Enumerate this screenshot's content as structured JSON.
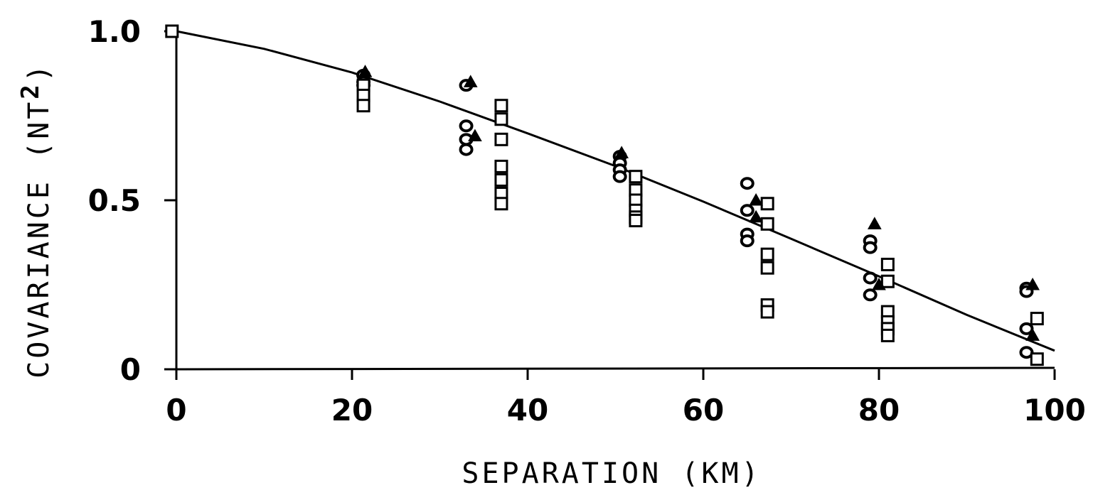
{
  "chart_data": {
    "type": "scatter",
    "title": "",
    "xlabel": "SEPARATION (KM)",
    "ylabel_text": "COVARIANCE (NT",
    "ylabel_superscript": "2",
    "ylabel_close": ")",
    "xlim": [
      0,
      100
    ],
    "ylim": [
      0,
      1.0
    ],
    "x_ticks": [
      0,
      20,
      40,
      60,
      80,
      100
    ],
    "x_tick_labels": [
      "0",
      "20",
      "40",
      "60",
      "80",
      "100"
    ],
    "y_ticks": [
      0,
      0.5,
      1.0
    ],
    "y_tick_labels": [
      "0",
      "0.5",
      "1.0"
    ],
    "grid": false,
    "series": [
      {
        "marker": "circle",
        "x": [
          21.3,
          21.3,
          21.3,
          33,
          33,
          33,
          33,
          50.5,
          50.5,
          50.5,
          50.5,
          65,
          65,
          65,
          65,
          79,
          79,
          79,
          79,
          96.8,
          96.8,
          96.8,
          96.8
        ],
        "y": [
          0.87,
          0.85,
          0.84,
          0.84,
          0.72,
          0.68,
          0.65,
          0.63,
          0.61,
          0.59,
          0.57,
          0.55,
          0.47,
          0.4,
          0.38,
          0.38,
          0.36,
          0.27,
          0.22,
          0.24,
          0.23,
          0.12,
          0.05
        ]
      },
      {
        "marker": "square",
        "x": [
          -0.5,
          21.3,
          21.3,
          21.3,
          37,
          37,
          37,
          37,
          37,
          37,
          37,
          52.3,
          52.3,
          52.3,
          52.3,
          52.3,
          52.3,
          67.3,
          67.3,
          67.3,
          67.3,
          67.3,
          67.3,
          81,
          81,
          81,
          81,
          81,
          81,
          98,
          98
        ],
        "y": [
          1.0,
          0.84,
          0.81,
          0.78,
          0.78,
          0.74,
          0.68,
          0.6,
          0.56,
          0.52,
          0.49,
          0.57,
          0.53,
          0.5,
          0.47,
          0.45,
          0.44,
          0.49,
          0.43,
          0.34,
          0.3,
          0.19,
          0.17,
          0.31,
          0.26,
          0.17,
          0.14,
          0.12,
          0.1,
          0.15,
          0.03
        ]
      },
      {
        "marker": "triangle",
        "x": [
          21.5,
          33.5,
          34,
          50.7,
          66,
          66,
          79.5,
          80,
          97.5,
          97.5
        ],
        "y": [
          0.88,
          0.85,
          0.69,
          0.64,
          0.5,
          0.45,
          0.43,
          0.25,
          0.25,
          0.1
        ]
      }
    ],
    "fit_curve": {
      "x": [
        0,
        10,
        20,
        30,
        40,
        50,
        60,
        70,
        80,
        90,
        100
      ],
      "y": [
        1.0,
        0.948,
        0.878,
        0.792,
        0.698,
        0.601,
        0.496,
        0.386,
        0.275,
        0.161,
        0.055
      ]
    }
  }
}
